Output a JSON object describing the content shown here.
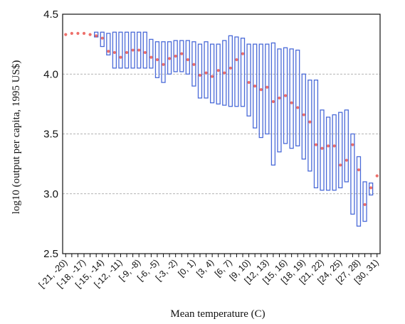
{
  "chart_data": {
    "type": "box",
    "xlabel": "Mean temperature (C)",
    "ylabel": "log10  (output per capita, 1995 US$)",
    "ylim": [
      2.5,
      4.5
    ],
    "yticks": [
      "2.5",
      "3.0",
      "3.5",
      "4.0",
      "4.5"
    ],
    "grid": "horizontal-dashed",
    "box_color": "#4a6ad8",
    "point_color": "#e8403a",
    "categories": [
      "[-21, -20)",
      "[-20, -19)",
      "[-19, -18)",
      "[-18, -17)",
      "[-17, -16)",
      "[-16, -15)",
      "[-15, -14)",
      "[-14, -13)",
      "[-13, -12)",
      "[-12, -11)",
      "[-11, -10)",
      "[-10, -9)",
      "[-9, -8)",
      "[-8, -7)",
      "[-7, -6)",
      "[-6, -5)",
      "[-5, -4)",
      "[-4, -3)",
      "[-3, -2)",
      "[-2, -1)",
      "[-1, 0)",
      "[0, 1)",
      "[1, 2)",
      "[2, 3)",
      "[3, 4)",
      "[4, 5)",
      "[5, 6)",
      "[6, 7)",
      "[7, 8)",
      "[8, 9)",
      "[9, 10)",
      "[10, 11)",
      "[11, 12)",
      "[12, 13)",
      "[13, 14)",
      "[14, 15)",
      "[15, 16)",
      "[16, 17)",
      "[17, 18)",
      "[18, 19)",
      "[19, 20)",
      "[20, 21)",
      "[21, 22)",
      "[22, 23)",
      "[23, 24)",
      "[24, 25)",
      "[25, 26)",
      "[26, 27)",
      "[27, 28)",
      "[28, 29)",
      "[29, 30)",
      "[30, 31)"
    ],
    "visible_tick_labels": [
      "[-21, -20)",
      "[-18, -17)",
      "[-15, -14)",
      "[-12, -11)",
      "[-9, -8)",
      "[-6, -5)",
      "[-3, -2)",
      "[0, 1)",
      "[3, 4)",
      "[6, 7)",
      "[9, 10)",
      "[12, 13)",
      "[15, 16)",
      "[18, 19)",
      "[21, 22)",
      "[24, 25)",
      "[27, 28)",
      "[30, 31)"
    ],
    "box_low": [
      null,
      null,
      null,
      null,
      null,
      4.31,
      4.23,
      4.16,
      4.05,
      4.05,
      4.05,
      4.05,
      4.05,
      4.05,
      4.05,
      3.97,
      3.93,
      4.0,
      4.02,
      4.02,
      4.0,
      3.9,
      3.8,
      3.8,
      3.76,
      3.75,
      3.74,
      3.73,
      3.73,
      3.73,
      3.65,
      3.55,
      3.47,
      3.5,
      3.24,
      3.35,
      3.42,
      3.38,
      3.4,
      3.29,
      3.19,
      3.05,
      3.03,
      3.03,
      3.03,
      3.05,
      3.1,
      2.83,
      2.73,
      2.77,
      2.99,
      null
    ],
    "box_high": [
      null,
      null,
      null,
      null,
      null,
      4.35,
      4.35,
      4.34,
      4.35,
      4.35,
      4.35,
      4.35,
      4.35,
      4.35,
      4.29,
      4.27,
      4.27,
      4.27,
      4.28,
      4.28,
      4.28,
      4.27,
      4.25,
      4.27,
      4.25,
      4.25,
      4.28,
      4.32,
      4.31,
      4.3,
      4.25,
      4.25,
      4.25,
      4.25,
      4.26,
      4.21,
      4.22,
      4.21,
      4.2,
      4.0,
      3.95,
      3.95,
      3.7,
      3.64,
      3.66,
      3.68,
      3.7,
      3.5,
      3.31,
      3.1,
      3.09,
      null
    ],
    "points": [
      4.33,
      4.34,
      4.34,
      4.34,
      4.33,
      4.32,
      4.3,
      4.19,
      4.18,
      4.14,
      4.18,
      4.2,
      4.2,
      4.18,
      4.14,
      4.12,
      4.08,
      4.13,
      4.15,
      4.17,
      4.12,
      4.08,
      3.99,
      4.01,
      3.98,
      4.03,
      4.01,
      4.05,
      4.12,
      4.17,
      3.93,
      3.9,
      3.87,
      3.89,
      3.77,
      3.8,
      3.82,
      3.76,
      3.72,
      3.66,
      3.6,
      3.41,
      3.38,
      3.4,
      3.4,
      3.24,
      3.28,
      3.41,
      3.2,
      2.91,
      3.05,
      3.15
    ]
  }
}
